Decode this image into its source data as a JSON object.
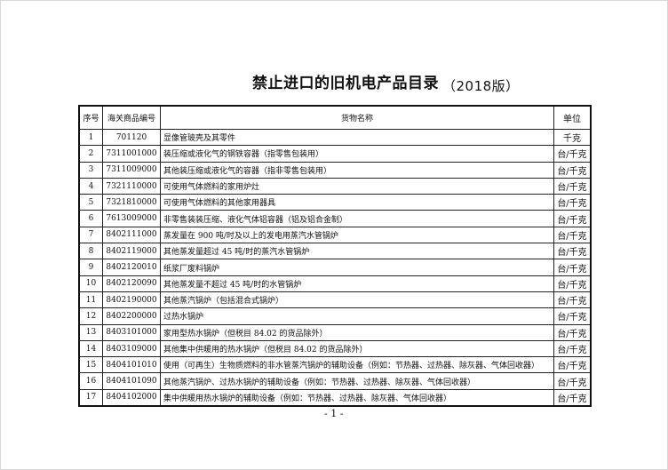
{
  "title": "禁止进口的旧机电产品目录",
  "edition": "（2018版）",
  "columns": [
    "序号",
    "海关商品编号",
    "货物名称",
    "单位"
  ],
  "rows": [
    [
      "1",
      "701120",
      "显像管玻壳及其零件",
      "千克"
    ],
    [
      "2",
      "7311001000",
      "装压缩或液化气的钢铁容器（指零售包装用）",
      "台/千克"
    ],
    [
      "3",
      "7311009000",
      "其他装压缩或液化气的容器（指非零售包装用）",
      "台/千克"
    ],
    [
      "4",
      "7321110000",
      "可使用气体燃料的家用炉灶",
      "台/千克"
    ],
    [
      "5",
      "7321810000",
      "可使用气体燃料的其他家用器具",
      "台/千克"
    ],
    [
      "6",
      "7613009000",
      "非零售装装压缩、液化气体铝容器（铝及铝合金制）",
      "台/千克"
    ],
    [
      "7",
      "8402111000",
      "蒸发量在 900 吨/时及以上的发电用蒸汽水管锅炉",
      "台/千克"
    ],
    [
      "8",
      "8402119000",
      "其他蒸发量超过 45 吨/时的蒸汽水管锅炉",
      "台/千克"
    ],
    [
      "9",
      "8402120010",
      "纸浆厂废料锅炉",
      "台/千克"
    ],
    [
      "10",
      "8402120090",
      "其他蒸发量不超过 45 吨/时的水管锅炉",
      "台/千克"
    ],
    [
      "11",
      "8402190000",
      "其他蒸汽锅炉（包括混合式锅炉）",
      "台/千克"
    ],
    [
      "12",
      "8402200000",
      "过热水锅炉",
      "台/千克"
    ],
    [
      "13",
      "8403101000",
      "家用型热水锅炉（但税目 84.02 的货品除外）",
      "台/千克"
    ],
    [
      "14",
      "8403109000",
      "其他集中供暖用的热水锅炉（但税目 84.02 的货品除外）",
      "台/千克"
    ],
    [
      "15",
      "8404101010",
      "使用（可再生）生物质燃料的非水管蒸汽锅炉的辅助设备（例如：节热器、过热器、除灰器、气体回收器）",
      "台/千克"
    ],
    [
      "16",
      "8404101090",
      "其他蒸汽锅炉、过热水锅炉的辅助设备（例如：节热器、过热器、除灰器、气体回收器）",
      "台/千克"
    ],
    [
      "17",
      "8404102000",
      "集中供暖用热水锅炉的辅助设备（例如：节热器、过热器、除灰器、气体回收器）",
      "台/千克"
    ]
  ],
  "page_number": "- 1 -"
}
